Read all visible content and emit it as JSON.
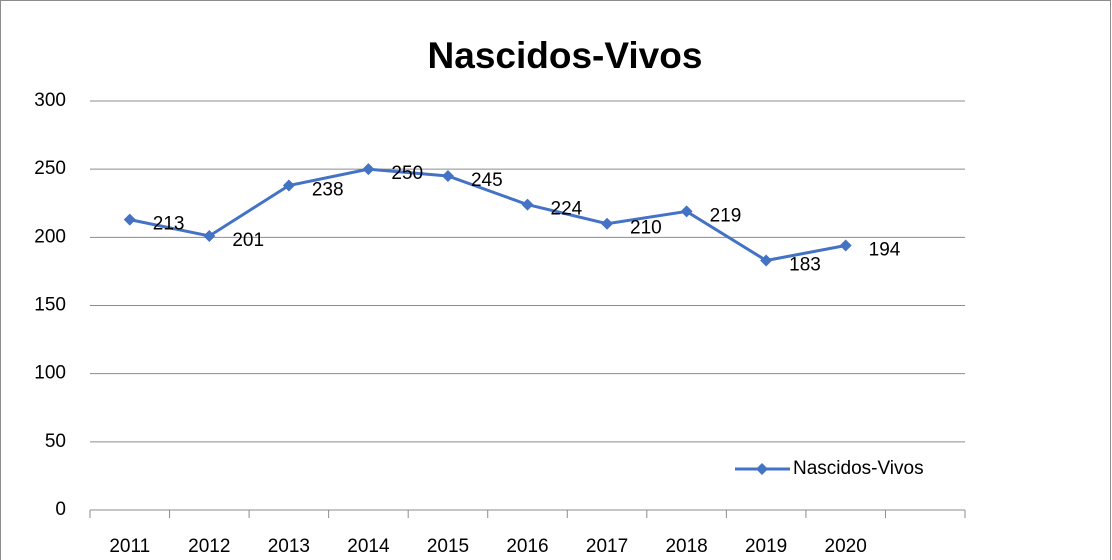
{
  "chart_data": {
    "type": "line",
    "title": "Nascidos-Vivos",
    "categories": [
      "2011",
      "2012",
      "2013",
      "2014",
      "2015",
      "2016",
      "2017",
      "2018",
      "2019",
      "2020",
      null
    ],
    "series": [
      {
        "name": "Nascidos-Vivos",
        "color": "#4472c4",
        "values": [
          213,
          201,
          238,
          250,
          245,
          224,
          210,
          219,
          183,
          194,
          null
        ]
      }
    ],
    "ylim": [
      0,
      300
    ],
    "yticks": [
      0,
      50,
      100,
      150,
      200,
      250,
      300
    ],
    "grid": true,
    "legend": "bottom-right"
  }
}
